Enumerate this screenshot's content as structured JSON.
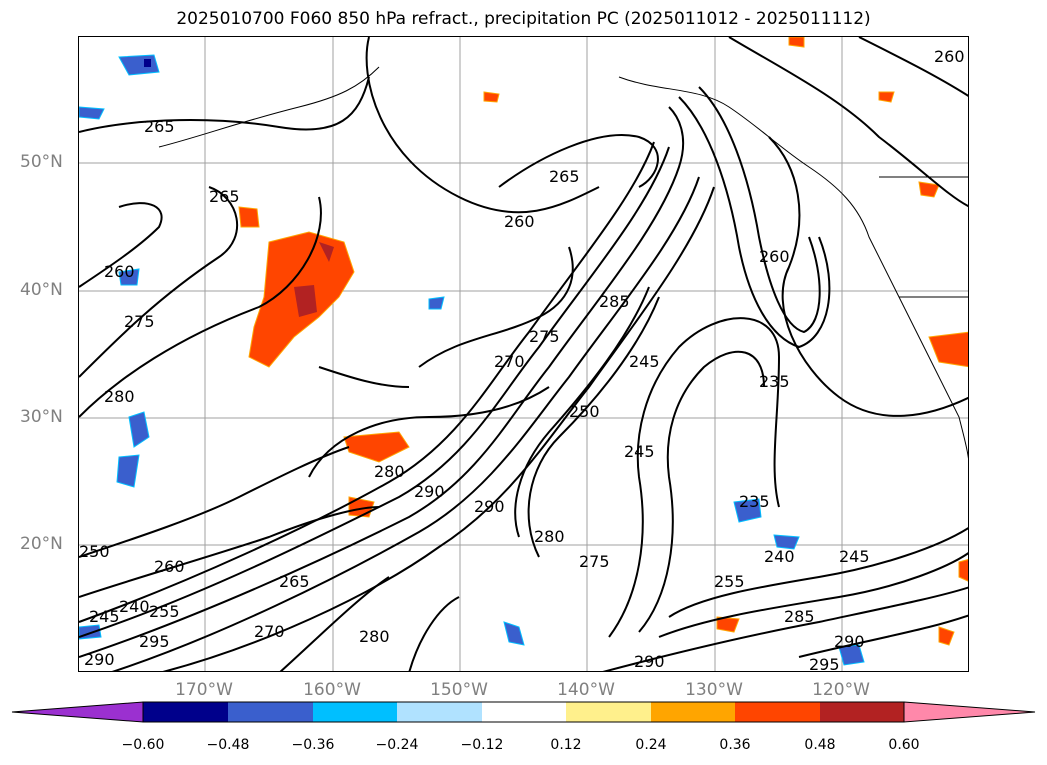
{
  "title": "2025010700 F060 850 hPa refract., precipitation PC (2025011012 - 2025011112)",
  "lat_labels": [
    "50°N",
    "40°N",
    "30°N",
    "20°N"
  ],
  "lon_labels": [
    "170°W",
    "160°W",
    "150°W",
    "140°W",
    "130°W",
    "120°W"
  ],
  "colorbar": {
    "ticks": [
      "−0.60",
      "−0.48",
      "−0.36",
      "−0.24",
      "−0.12",
      "0.12",
      "0.24",
      "0.36",
      "0.48",
      "0.60"
    ],
    "colors": [
      "#9b30d0",
      "#00008b",
      "#3a5fcd",
      "#00bfff",
      "#b0e2ff",
      "#ffffff",
      "#fff08c",
      "#ffa500",
      "#ff4500",
      "#b22222",
      "#ff88aa"
    ]
  },
  "contour_labels": [
    "265",
    "260",
    "275",
    "280",
    "265",
    "260",
    "265",
    "260",
    "270",
    "275",
    "285",
    "245",
    "250",
    "260",
    "235",
    "245",
    "280",
    "290",
    "290",
    "280",
    "275",
    "235",
    "240",
    "245",
    "255",
    "285",
    "290",
    "295",
    "250",
    "260",
    "265",
    "245",
    "240",
    "255",
    "295",
    "290",
    "270",
    "280",
    "290"
  ],
  "colors": {
    "contour": "#000000",
    "grid": "#a0a0a0",
    "coast": "#000000"
  }
}
